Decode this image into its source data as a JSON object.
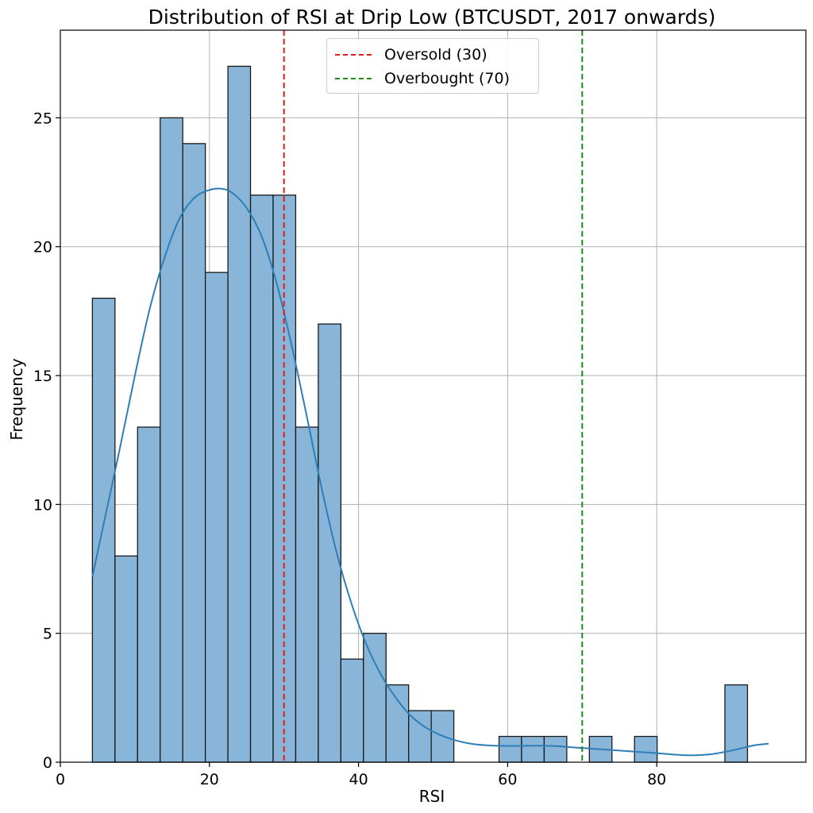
{
  "chart_data": {
    "type": "bar",
    "title": "Distribution of RSI at Drip Low (BTCUSDT, 2017 onwards)",
    "xlabel": "RSI",
    "ylabel": "Frequency",
    "xlim": [
      0,
      100
    ],
    "ylim": [
      0,
      28.4
    ],
    "grid": true,
    "legend_position": "top-center",
    "x_ticks": [
      0,
      20,
      40,
      60,
      80
    ],
    "y_ticks": [
      0,
      5,
      10,
      15,
      20,
      25
    ],
    "bar_color": "#89b5d8",
    "bar_edge_color": "#1a1a1a",
    "kde_color": "#2e7eb7",
    "bins": {
      "start": 4.3,
      "width": 3.03,
      "counts": [
        18,
        8,
        13,
        25,
        24,
        19,
        27,
        22,
        22,
        13,
        17,
        4,
        5,
        3,
        2,
        2,
        0,
        0,
        1,
        1,
        1,
        0,
        1,
        0,
        1,
        0,
        0,
        0,
        3
      ]
    },
    "kde_curve": {
      "x": [
        4.3,
        6,
        8,
        10,
        12,
        14,
        16,
        18,
        20,
        21.5,
        23,
        25,
        27,
        29,
        31,
        33,
        35,
        37,
        39,
        41,
        43,
        45,
        47,
        49,
        51,
        53,
        55,
        57,
        60,
        63,
        66,
        70,
        75,
        80,
        84,
        87,
        90,
        93,
        95
      ],
      "y": [
        7.2,
        9.5,
        12.2,
        15,
        17.6,
        19.6,
        21.1,
        21.9,
        22.2,
        22.25,
        22.1,
        21.5,
        20.4,
        18.6,
        16.2,
        13.5,
        10.7,
        8.2,
        6.2,
        4.6,
        3.4,
        2.5,
        1.8,
        1.35,
        1.05,
        0.85,
        0.72,
        0.66,
        0.63,
        0.64,
        0.63,
        0.55,
        0.45,
        0.35,
        0.27,
        0.3,
        0.45,
        0.65,
        0.72
      ]
    },
    "reference_lines": [
      {
        "label": "Oversold (30)",
        "x": 30,
        "color": "#e41a1c"
      },
      {
        "label": "Overbought (70)",
        "x": 70,
        "color": "#1a8a1a"
      }
    ]
  }
}
